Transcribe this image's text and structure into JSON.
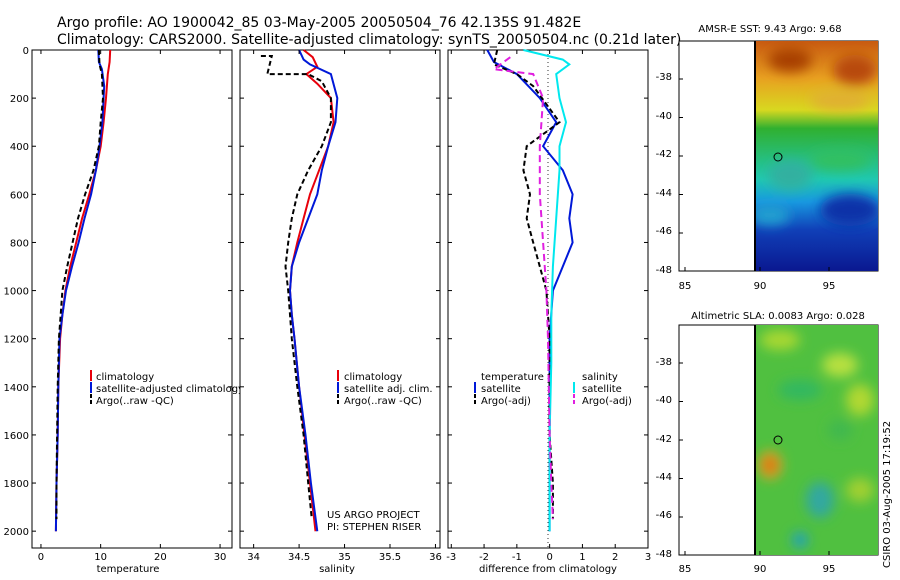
{
  "title": {
    "line1": "Argo profile: AO 1900042_85 03-May-2005 20050504_76 42.135S 91.482E",
    "line2": "Climatology: CARS2000. Satellite-adjusted climatology: synTS_20050504.nc (0.21d later)"
  },
  "colors": {
    "climatology": "#e8000b",
    "satellite": "#0018d8",
    "argo": "#000000",
    "salinity_sat": "#00e8ee",
    "salinity_argo": "#e020e0"
  },
  "depth_axis": {
    "ticks": [
      0,
      200,
      400,
      600,
      800,
      1000,
      1200,
      1400,
      1600,
      1800,
      2000
    ],
    "labels": [
      "0",
      "200",
      "400",
      "600",
      "800",
      "1000",
      "1200",
      "1400",
      "1600",
      "1800",
      "2000"
    ],
    "ylim": [
      0,
      2070
    ]
  },
  "chart_data": [
    {
      "type": "line",
      "name": "temperature-profile",
      "xlabel": "temperature",
      "xlim": [
        -1.5,
        32
      ],
      "xticks": [
        0,
        10,
        20,
        30
      ],
      "xtick_labels": [
        "0",
        "10",
        "20",
        "30"
      ],
      "legend": [
        "climatology",
        "satellite-adjusted climatology",
        "Argo(..raw -QC)"
      ],
      "series": [
        {
          "name": "climatology",
          "color": "climatology",
          "dash": "",
          "points": [
            [
              11.6,
              0
            ],
            [
              11.5,
              50
            ],
            [
              11.2,
              100
            ],
            [
              10.9,
              200
            ],
            [
              10.5,
              300
            ],
            [
              10.0,
              400
            ],
            [
              9.2,
              500
            ],
            [
              8.1,
              600
            ],
            [
              6.9,
              700
            ],
            [
              5.9,
              800
            ],
            [
              4.9,
              900
            ],
            [
              4.1,
              1000
            ],
            [
              3.6,
              1100
            ],
            [
              3.2,
              1200
            ],
            [
              2.9,
              1400
            ],
            [
              2.8,
              1600
            ],
            [
              2.6,
              1800
            ],
            [
              2.5,
              2000
            ]
          ]
        },
        {
          "name": "satellite",
          "color": "satellite",
          "dash": "",
          "points": [
            [
              9.6,
              0
            ],
            [
              9.7,
              50
            ],
            [
              10.2,
              80
            ],
            [
              10.6,
              150
            ],
            [
              10.5,
              200
            ],
            [
              10.3,
              300
            ],
            [
              9.8,
              400
            ],
            [
              9.2,
              500
            ],
            [
              8.4,
              600
            ],
            [
              7.3,
              700
            ],
            [
              6.3,
              800
            ],
            [
              5.2,
              900
            ],
            [
              4.2,
              1000
            ],
            [
              3.6,
              1100
            ],
            [
              3.1,
              1200
            ],
            [
              2.9,
              1400
            ],
            [
              2.8,
              1600
            ],
            [
              2.6,
              1800
            ],
            [
              2.5,
              2000
            ]
          ]
        },
        {
          "name": "argo",
          "color": "argo",
          "dash": "5,3",
          "points": [
            [
              9.7,
              0
            ],
            [
              9.8,
              60
            ],
            [
              10.2,
              100
            ],
            [
              10.4,
              200
            ],
            [
              10.0,
              300
            ],
            [
              9.7,
              400
            ],
            [
              8.8,
              500
            ],
            [
              7.4,
              600
            ],
            [
              6.2,
              700
            ],
            [
              5.3,
              800
            ],
            [
              4.4,
              900
            ],
            [
              3.6,
              1000
            ],
            [
              3.3,
              1100
            ],
            [
              3.0,
              1200
            ],
            [
              2.8,
              1400
            ],
            [
              2.7,
              1600
            ],
            [
              2.6,
              1800
            ],
            [
              2.6,
              1950
            ]
          ]
        }
      ]
    },
    {
      "type": "line",
      "name": "salinity-profile",
      "xlabel": "salinity",
      "xlim": [
        33.85,
        36.05
      ],
      "xticks": [
        34,
        34.5,
        35,
        35.5,
        36
      ],
      "xtick_labels": [
        "34",
        "34.5",
        "35",
        "35.5",
        "36"
      ],
      "legend": [
        "climatology",
        "satellite adj. clim.",
        "Argo(..raw -QC)"
      ],
      "series": [
        {
          "name": "climatology",
          "color": "climatology",
          "dash": "",
          "points": [
            [
              34.55,
              0
            ],
            [
              34.65,
              30
            ],
            [
              34.7,
              70
            ],
            [
              34.58,
              100
            ],
            [
              34.7,
              140
            ],
            [
              34.85,
              200
            ],
            [
              34.88,
              300
            ],
            [
              34.82,
              400
            ],
            [
              34.72,
              500
            ],
            [
              34.62,
              600
            ],
            [
              34.55,
              700
            ],
            [
              34.48,
              800
            ],
            [
              34.42,
              900
            ],
            [
              34.4,
              1000
            ],
            [
              34.42,
              1100
            ],
            [
              34.45,
              1200
            ],
            [
              34.5,
              1400
            ],
            [
              34.56,
              1600
            ],
            [
              34.62,
              1800
            ],
            [
              34.68,
              2000
            ]
          ]
        },
        {
          "name": "satellite",
          "color": "satellite",
          "dash": "",
          "points": [
            [
              34.5,
              0
            ],
            [
              34.55,
              40
            ],
            [
              34.62,
              60
            ],
            [
              34.85,
              100
            ],
            [
              34.92,
              200
            ],
            [
              34.9,
              300
            ],
            [
              34.82,
              400
            ],
            [
              34.75,
              500
            ],
            [
              34.7,
              600
            ],
            [
              34.6,
              700
            ],
            [
              34.5,
              800
            ],
            [
              34.42,
              900
            ],
            [
              34.4,
              1000
            ],
            [
              34.42,
              1100
            ],
            [
              34.45,
              1200
            ],
            [
              34.5,
              1400
            ],
            [
              34.57,
              1600
            ],
            [
              34.63,
              1800
            ],
            [
              34.7,
              2000
            ]
          ]
        },
        {
          "name": "argo",
          "color": "argo",
          "dash": "5,3",
          "points": [
            [
              34.08,
              25
            ],
            [
              34.2,
              25
            ],
            [
              34.15,
              100
            ],
            [
              34.6,
              100
            ],
            [
              34.75,
              130
            ],
            [
              34.85,
              200
            ],
            [
              34.85,
              300
            ],
            [
              34.75,
              400
            ],
            [
              34.6,
              500
            ],
            [
              34.48,
              600
            ],
            [
              34.42,
              700
            ],
            [
              34.38,
              800
            ],
            [
              34.35,
              900
            ],
            [
              34.38,
              1000
            ],
            [
              34.4,
              1100
            ],
            [
              34.42,
              1200
            ],
            [
              34.48,
              1400
            ],
            [
              34.55,
              1600
            ],
            [
              34.6,
              1800
            ],
            [
              34.64,
              1950
            ]
          ]
        }
      ],
      "credit": [
        "US ARGO PROJECT",
        "PI: STEPHEN RISER"
      ]
    },
    {
      "type": "line",
      "name": "difference-profile",
      "xlabel": "difference from climatology",
      "xlim": [
        -3.1,
        3.0
      ],
      "xticks": [
        -3,
        -2,
        -1,
        0,
        1,
        2,
        3
      ],
      "xtick_labels": [
        "-3",
        "-2",
        "-1",
        "0",
        "1",
        "2",
        "3"
      ],
      "legend_temperature": [
        "temperature",
        "satellite",
        "Argo(-adj)"
      ],
      "legend_salinity": [
        "salinity",
        "satellite",
        "Argo(-adj)"
      ],
      "series": [
        {
          "name": "temperature satellite",
          "color": "satellite",
          "dash": "",
          "points": [
            [
              -1.9,
              0
            ],
            [
              -1.7,
              50
            ],
            [
              -1.0,
              100
            ],
            [
              -0.3,
              200
            ],
            [
              0.2,
              300
            ],
            [
              -0.2,
              400
            ],
            [
              0.4,
              500
            ],
            [
              0.7,
              600
            ],
            [
              0.6,
              700
            ],
            [
              0.7,
              800
            ],
            [
              0.4,
              900
            ],
            [
              0.1,
              1000
            ],
            [
              0,
              1200
            ],
            [
              0,
              1600
            ],
            [
              0,
              2000
            ]
          ]
        },
        {
          "name": "temperature argo",
          "color": "argo",
          "dash": "5,3",
          "points": [
            [
              -1.6,
              0
            ],
            [
              -1.7,
              60
            ],
            [
              -1.0,
              100
            ],
            [
              -0.5,
              150
            ],
            [
              0.3,
              300
            ],
            [
              -0.7,
              400
            ],
            [
              -0.8,
              500
            ],
            [
              -0.6,
              600
            ],
            [
              -0.7,
              700
            ],
            [
              -0.5,
              800
            ],
            [
              -0.3,
              900
            ],
            [
              -0.1,
              1000
            ],
            [
              0,
              1200
            ],
            [
              0,
              1600
            ],
            [
              0.1,
              1800
            ],
            [
              0.1,
              1950
            ]
          ]
        },
        {
          "name": "salinity satellite",
          "color": "salinity_sat",
          "dash": "",
          "points": [
            [
              -0.8,
              0
            ],
            [
              0.4,
              40
            ],
            [
              0.6,
              60
            ],
            [
              0.2,
              100
            ],
            [
              0.3,
              200
            ],
            [
              0.5,
              300
            ],
            [
              0.3,
              400
            ],
            [
              0.3,
              500
            ],
            [
              0.2,
              700
            ],
            [
              0.1,
              900
            ],
            [
              0.05,
              1100
            ],
            [
              0.05,
              1300
            ],
            [
              0,
              1600
            ],
            [
              0,
              2000
            ]
          ]
        },
        {
          "name": "salinity argo",
          "color": "salinity_argo",
          "dash": "7,4",
          "points": [
            [
              -1.2,
              30
            ],
            [
              -1.7,
              80
            ],
            [
              -0.5,
              100
            ],
            [
              -0.2,
              200
            ],
            [
              -0.3,
              400
            ],
            [
              -0.3,
              600
            ],
            [
              -0.2,
              800
            ],
            [
              -0.1,
              1000
            ],
            [
              -0.05,
              1200
            ],
            [
              0,
              1600
            ],
            [
              0.05,
              1800
            ],
            [
              0.1,
              1950
            ]
          ]
        }
      ]
    }
  ],
  "maps": [
    {
      "name": "sst-map",
      "title": "AMSR-E SST: 9.43 Argo: 9.68",
      "yticks": [
        "-38",
        "-40",
        "-42",
        "-44",
        "-46",
        "-48"
      ],
      "xticks": [
        "85",
        "90",
        "95"
      ],
      "marker": {
        "lon": 91.5,
        "lat": -42.1
      }
    },
    {
      "name": "sla-map",
      "title": "Altimetric SLA: 0.0083 Argo: 0.028",
      "yticks": [
        "-38",
        "-40",
        "-42",
        "-44",
        "-46",
        "-48"
      ],
      "xticks": [
        "85",
        "90",
        "95"
      ],
      "marker": {
        "lon": 91.5,
        "lat": -42.1
      }
    }
  ],
  "timestamp": "CSIRO 03-Aug-2005 17:19:52"
}
